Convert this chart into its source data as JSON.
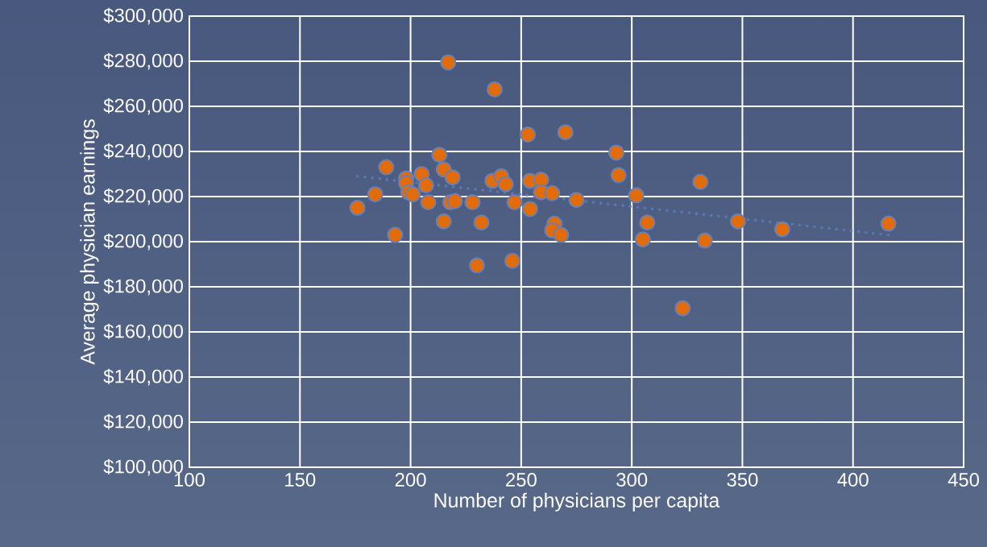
{
  "chart_data": {
    "type": "scatter",
    "xlabel": "Number of physicians per capita",
    "ylabel": "Average physician earnings",
    "xlim": [
      100,
      450
    ],
    "ylim": [
      100000,
      300000
    ],
    "xticks": [
      100,
      150,
      200,
      250,
      300,
      350,
      400,
      450
    ],
    "yticks": [
      {
        "value": 100000,
        "label": "$100,000"
      },
      {
        "value": 120000,
        "label": "$120,000"
      },
      {
        "value": 140000,
        "label": "$140,000"
      },
      {
        "value": 160000,
        "label": "$160,000"
      },
      {
        "value": 180000,
        "label": "$180,000"
      },
      {
        "value": 200000,
        "label": "$200,000"
      },
      {
        "value": 220000,
        "label": "$220,000"
      },
      {
        "value": 240000,
        "label": "$240,000"
      },
      {
        "value": 260000,
        "label": "$260,000"
      },
      {
        "value": 280000,
        "label": "$280,000"
      },
      {
        "value": 300000,
        "label": "$300,000"
      }
    ],
    "grid": true,
    "marker": "circle",
    "series": [
      {
        "color": "#e36c0a",
        "x": [
          176,
          184,
          189,
          193,
          198,
          198,
          199,
          201,
          205,
          207,
          208,
          213,
          215,
          219,
          218,
          220,
          215,
          228,
          232,
          237,
          241,
          243,
          247,
          254,
          254,
          259,
          259,
          264,
          275,
          265,
          264,
          268,
          253,
          270,
          230,
          246,
          217,
          238,
          293,
          294,
          302,
          307,
          305,
          331,
          333,
          348,
          323,
          416,
          368
        ],
        "values": [
          215000,
          221000,
          233000,
          203000,
          228000,
          226000,
          222000,
          221000,
          230000,
          225000,
          217500,
          238500,
          232000,
          228500,
          217500,
          218000,
          209000,
          217500,
          208500,
          227000,
          229000,
          225500,
          217500,
          214500,
          227000,
          227500,
          222000,
          221500,
          218500,
          208000,
          205000,
          203000,
          247500,
          248500,
          189500,
          191500,
          279500,
          267500,
          239500,
          229500,
          220500,
          208500,
          201000,
          226500,
          200500,
          209000,
          170500,
          208000,
          205500
        ]
      },
      {
        "type": "line",
        "color": "#5a76b0",
        "line_style": "dotted",
        "marker": "none",
        "x": [
          176,
          416
        ],
        "values": [
          229000,
          203000
        ]
      }
    ]
  }
}
